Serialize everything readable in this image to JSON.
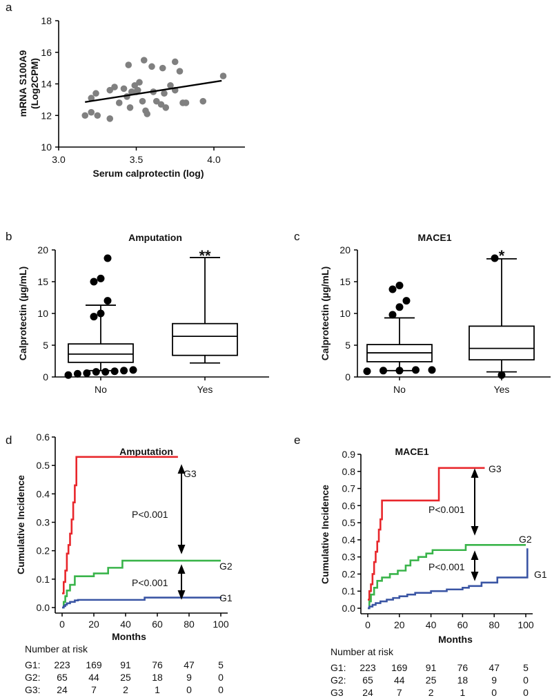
{
  "panels": {
    "a": "a",
    "b": "b",
    "c": "c",
    "d": "d",
    "e": "e"
  },
  "chart_data": [
    {
      "id": "a",
      "type": "scatter",
      "xlabel": "Serum calprotectin (log)",
      "ylabel": "mRNA S100A9 (Log2CPM)",
      "xlim": [
        3.0,
        4.2
      ],
      "ylim": [
        10,
        18
      ],
      "xticks": [
        "3.0",
        "3.5",
        "4.0"
      ],
      "yticks": [
        "10",
        "12",
        "14",
        "16",
        "18"
      ],
      "point_color": "#808080",
      "points": [
        [
          3.17,
          12.0
        ],
        [
          3.21,
          12.2
        ],
        [
          3.25,
          12.0
        ],
        [
          3.21,
          13.1
        ],
        [
          3.24,
          13.4
        ],
        [
          3.33,
          11.8
        ],
        [
          3.33,
          13.6
        ],
        [
          3.36,
          13.8
        ],
        [
          3.39,
          12.8
        ],
        [
          3.42,
          13.7
        ],
        [
          3.44,
          13.2
        ],
        [
          3.45,
          15.2
        ],
        [
          3.46,
          12.5
        ],
        [
          3.47,
          13.5
        ],
        [
          3.49,
          13.9
        ],
        [
          3.5,
          13.5
        ],
        [
          3.51,
          13.6
        ],
        [
          3.52,
          14.1
        ],
        [
          3.54,
          12.9
        ],
        [
          3.55,
          15.5
        ],
        [
          3.56,
          12.3
        ],
        [
          3.57,
          12.1
        ],
        [
          3.6,
          15.1
        ],
        [
          3.61,
          13.5
        ],
        [
          3.63,
          12.9
        ],
        [
          3.66,
          12.7
        ],
        [
          3.67,
          15.0
        ],
        [
          3.68,
          13.4
        ],
        [
          3.69,
          12.5
        ],
        [
          3.72,
          13.9
        ],
        [
          3.75,
          13.6
        ],
        [
          3.75,
          15.4
        ],
        [
          3.78,
          14.8
        ],
        [
          3.8,
          12.8
        ],
        [
          3.82,
          12.8
        ],
        [
          3.93,
          12.9
        ],
        [
          4.06,
          14.5
        ]
      ],
      "fit_line": {
        "x": [
          3.17,
          4.05
        ],
        "y": [
          12.85,
          14.2
        ],
        "color": "#000000"
      }
    },
    {
      "id": "b",
      "type": "box",
      "title": "Amputation",
      "ylabel": "Calprotectin (µg/mL)",
      "ylim": [
        0,
        20
      ],
      "yticks": [
        "0",
        "5",
        "10",
        "15",
        "20"
      ],
      "categories": [
        "No",
        "Yes"
      ],
      "boxes": [
        {
          "whisker_low": 1.0,
          "q1": 2.3,
          "median": 3.6,
          "q3": 5.2,
          "whisker_high": 11.3,
          "outliers": [
            0.3,
            0.5,
            0.6,
            0.8,
            0.8,
            0.9,
            1.0,
            1.1,
            9.5,
            10.0,
            12.0,
            15.0,
            15.5,
            18.7
          ]
        },
        {
          "whisker_low": 2.2,
          "q1": 3.4,
          "median": 6.4,
          "q3": 8.4,
          "whisker_high": 18.8,
          "outliers": []
        }
      ],
      "significance": [
        "",
        "**"
      ]
    },
    {
      "id": "c",
      "type": "box",
      "title": "MACE1",
      "ylabel": "Calprotectin (µg/mL)",
      "ylim": [
        0,
        20
      ],
      "yticks": [
        "0",
        "5",
        "10",
        "15",
        "20"
      ],
      "categories": [
        "No",
        "Yes"
      ],
      "boxes": [
        {
          "whisker_low": 1.0,
          "q1": 2.4,
          "median": 3.8,
          "q3": 5.1,
          "whisker_high": 9.3,
          "outliers": [
            0.9,
            1.0,
            1.0,
            1.1,
            1.1,
            9.8,
            11.0,
            12.0,
            13.8,
            14.4
          ]
        },
        {
          "whisker_low": 0.8,
          "q1": 2.7,
          "median": 4.5,
          "q3": 8.0,
          "whisker_high": 18.6,
          "outliers": [
            0.3,
            18.7
          ]
        }
      ],
      "significance": [
        "",
        "*"
      ]
    },
    {
      "id": "d",
      "type": "line",
      "title": "Amputation",
      "xlabel": "Months",
      "ylabel": "Cumulative Incidence",
      "xlim": [
        0,
        100
      ],
      "ylim": [
        0,
        0.6
      ],
      "xticks": [
        "0",
        "20",
        "40",
        "60",
        "80",
        "100"
      ],
      "yticks": [
        "0.0",
        "0.1",
        "0.2",
        "0.3",
        "0.4",
        "0.5",
        "0.6"
      ],
      "series": [
        {
          "name": "G3",
          "color": "#e8262b",
          "x": [
            0,
            1,
            2,
            3,
            4,
            5,
            6,
            7,
            8,
            9,
            73
          ],
          "y": [
            0.05,
            0.09,
            0.13,
            0.19,
            0.22,
            0.26,
            0.31,
            0.37,
            0.43,
            0.53,
            0.53
          ]
        },
        {
          "name": "G2",
          "color": "#39b44a",
          "x": [
            0,
            1,
            2,
            3,
            5,
            8,
            20,
            29,
            38,
            100
          ],
          "y": [
            0.0,
            0.02,
            0.04,
            0.06,
            0.08,
            0.11,
            0.12,
            0.14,
            0.165,
            0.165
          ]
        },
        {
          "name": "G1",
          "color": "#3a55a4",
          "x": [
            0,
            1,
            2,
            3,
            5,
            8,
            10,
            52,
            100
          ],
          "y": [
            0.0,
            0.005,
            0.01,
            0.015,
            0.02,
            0.025,
            0.027,
            0.035,
            0.037
          ]
        }
      ],
      "annotations": [
        "P<0.001",
        "P<0.001"
      ],
      "risk_table": {
        "title": "Number at risk",
        "rows": [
          {
            "label": "G1:",
            "values": [
              "223",
              "169",
              "91",
              "76",
              "47",
              "5"
            ]
          },
          {
            "label": "G2:",
            "values": [
              "65",
              "44",
              "25",
              "18",
              "9",
              "0"
            ]
          },
          {
            "label": "G3:",
            "values": [
              "24",
              "7",
              "2",
              "1",
              "0",
              "0"
            ]
          }
        ]
      }
    },
    {
      "id": "e",
      "type": "line",
      "title": "MACE1",
      "xlabel": "Months",
      "ylabel": "Cumulative Incidence",
      "xlim": [
        0,
        100
      ],
      "ylim": [
        0,
        0.9
      ],
      "xticks": [
        "0",
        "20",
        "40",
        "60",
        "80",
        "100"
      ],
      "yticks": [
        "0.0",
        "0.1",
        "0.2",
        "0.3",
        "0.4",
        "0.5",
        "0.6",
        "0.7",
        "0.8",
        "0.9"
      ],
      "series": [
        {
          "name": "G3",
          "color": "#e8262b",
          "x": [
            0,
            1,
            2,
            3,
            4,
            5,
            6,
            7,
            8,
            9,
            45,
            74
          ],
          "y": [
            0.05,
            0.1,
            0.14,
            0.2,
            0.27,
            0.33,
            0.39,
            0.46,
            0.52,
            0.63,
            0.82,
            0.82
          ]
        },
        {
          "name": "G2",
          "color": "#39b44a",
          "x": [
            0,
            1,
            2,
            4,
            6,
            9,
            14,
            19,
            24,
            27,
            32,
            37,
            41,
            62,
            100
          ],
          "y": [
            0.0,
            0.04,
            0.08,
            0.12,
            0.16,
            0.18,
            0.2,
            0.22,
            0.25,
            0.28,
            0.3,
            0.32,
            0.34,
            0.37,
            0.37
          ]
        },
        {
          "name": "G1",
          "color": "#3a55a4",
          "x": [
            0,
            1,
            3,
            5,
            8,
            12,
            16,
            20,
            25,
            30,
            40,
            50,
            60,
            64,
            72,
            82,
            100,
            101
          ],
          "y": [
            0.0,
            0.01,
            0.02,
            0.03,
            0.04,
            0.05,
            0.06,
            0.07,
            0.08,
            0.09,
            0.1,
            0.11,
            0.12,
            0.13,
            0.15,
            0.18,
            0.18,
            0.35
          ]
        }
      ],
      "annotations": [
        "P<0.001",
        "P<0.001"
      ],
      "risk_table": {
        "title": "Number at risk",
        "rows": [
          {
            "label": "G1:",
            "values": [
              "223",
              "169",
              "91",
              "76",
              "47",
              "5"
            ]
          },
          {
            "label": "G2:",
            "values": [
              "65",
              "44",
              "25",
              "18",
              "9",
              "0"
            ]
          },
          {
            "label": "G3",
            "values": [
              "24",
              "7",
              "2",
              "1",
              "0",
              "0"
            ]
          }
        ]
      }
    }
  ]
}
